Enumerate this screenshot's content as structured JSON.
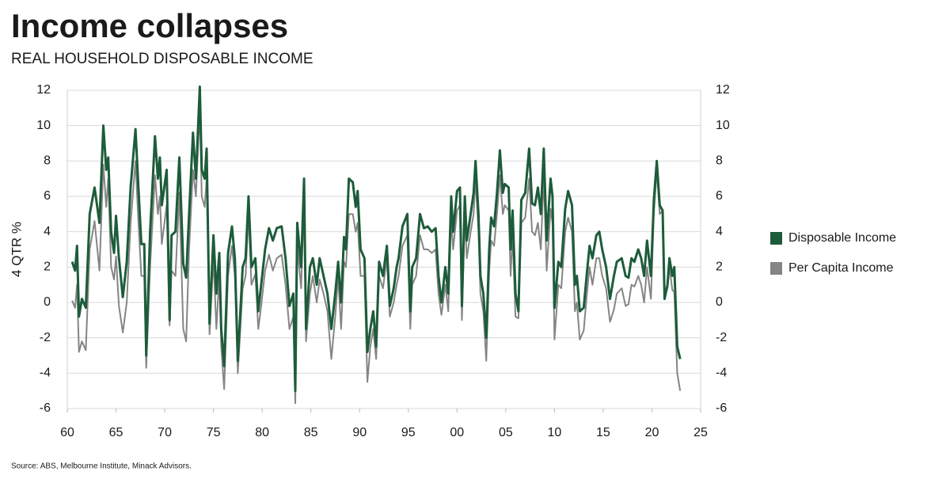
{
  "chart_data": {
    "type": "line",
    "title": "Income collapses",
    "subtitle": "REAL HOUSEHOLD DISPOSABLE INCOME",
    "y_label": "4 QTR %",
    "source": "Source: ABS, Melbourne Institute, Minack Advisors.",
    "legend": "right",
    "grid": true,
    "xlim": [
      1960,
      2025
    ],
    "xticks": [
      {
        "value": 1960,
        "label": "60"
      },
      {
        "value": 1965,
        "label": "65"
      },
      {
        "value": 1970,
        "label": "70"
      },
      {
        "value": 1975,
        "label": "75"
      },
      {
        "value": 1980,
        "label": "80"
      },
      {
        "value": 1985,
        "label": "85"
      },
      {
        "value": 1990,
        "label": "90"
      },
      {
        "value": 1995,
        "label": "95"
      },
      {
        "value": 2000,
        "label": "00"
      },
      {
        "value": 2005,
        "label": "05"
      },
      {
        "value": 2010,
        "label": "10"
      },
      {
        "value": 2015,
        "label": "15"
      },
      {
        "value": 2020,
        "label": "20"
      },
      {
        "value": 2025,
        "label": "25"
      }
    ],
    "ylim": [
      -6,
      12
    ],
    "yticks": [
      -6,
      -4,
      -2,
      0,
      2,
      4,
      6,
      8,
      10,
      12
    ],
    "y2lim": [
      -6,
      12
    ],
    "y2ticks": [
      -6,
      -4,
      -2,
      0,
      2,
      4,
      6,
      8,
      10,
      12
    ],
    "x": [
      1960.5,
      1960.8,
      1961.0,
      1961.2,
      1961.5,
      1961.9,
      1962.3,
      1962.8,
      1963.3,
      1963.7,
      1964.0,
      1964.2,
      1964.5,
      1964.8,
      1965.0,
      1965.3,
      1965.7,
      1966.1,
      1966.5,
      1967.0,
      1967.3,
      1967.6,
      1967.9,
      1968.1,
      1968.5,
      1969.0,
      1969.3,
      1969.5,
      1969.7,
      1970.2,
      1970.5,
      1970.7,
      1971.1,
      1971.5,
      1971.9,
      1972.2,
      1972.5,
      1972.9,
      1973.2,
      1973.6,
      1973.8,
      1974.1,
      1974.3,
      1974.6,
      1975.0,
      1975.3,
      1975.6,
      1975.8,
      1976.1,
      1976.5,
      1976.9,
      1977.2,
      1977.5,
      1978.0,
      1978.3,
      1978.6,
      1978.9,
      1979.3,
      1979.6,
      1979.9,
      1980.3,
      1980.7,
      1981.1,
      1981.5,
      1982.0,
      1982.4,
      1982.8,
      1983.2,
      1983.4,
      1983.6,
      1984.0,
      1984.3,
      1984.5,
      1984.9,
      1985.2,
      1985.6,
      1985.9,
      1986.3,
      1986.7,
      1987.1,
      1987.5,
      1987.8,
      1988.1,
      1988.4,
      1988.6,
      1988.9,
      1989.3,
      1989.6,
      1989.8,
      1990.1,
      1990.5,
      1990.8,
      1991.1,
      1991.4,
      1991.7,
      1992.0,
      1992.4,
      1992.8,
      1993.1,
      1993.5,
      1993.8,
      1994.0,
      1994.4,
      1994.9,
      1995.2,
      1995.4,
      1995.8,
      1996.2,
      1996.6,
      1997.0,
      1997.4,
      1997.8,
      1998.1,
      1998.4,
      1998.8,
      1999.1,
      1999.4,
      1999.6,
      2000.0,
      2000.3,
      2000.5,
      2000.8,
      2001.0,
      2001.4,
      2001.7,
      2001.9,
      2002.2,
      2002.4,
      2002.7,
      2003.0,
      2003.3,
      2003.5,
      2003.8,
      2004.1,
      2004.4,
      2004.7,
      2004.9,
      2005.3,
      2005.5,
      2005.7,
      2006.0,
      2006.3,
      2006.6,
      2007.0,
      2007.4,
      2007.7,
      2008.0,
      2008.3,
      2008.6,
      2008.9,
      2009.2,
      2009.6,
      2009.8,
      2010.0,
      2010.4,
      2010.7,
      2011.1,
      2011.4,
      2011.8,
      2012.1,
      2012.3,
      2012.6,
      2013.0,
      2013.3,
      2013.6,
      2013.9,
      2014.3,
      2014.6,
      2014.9,
      2015.3,
      2015.7,
      2016.1,
      2016.4,
      2016.9,
      2017.3,
      2017.6,
      2017.9,
      2018.2,
      2018.6,
      2018.9,
      2019.2,
      2019.5,
      2019.9,
      2020.2,
      2020.5,
      2020.8,
      2021.1,
      2021.3,
      2021.6,
      2021.8,
      2022.1,
      2022.3,
      2022.6,
      2022.9
    ],
    "series": [
      {
        "name": "Per Capita Income",
        "color": "#858585",
        "width": 2,
        "values": [
          0.1,
          -0.3,
          1.0,
          -2.8,
          -2.2,
          -2.7,
          3.0,
          4.6,
          1.8,
          7.8,
          5.4,
          7.0,
          2.0,
          1.3,
          2.6,
          -0.2,
          -1.7,
          0.0,
          4.5,
          8.0,
          4.5,
          1.5,
          1.5,
          -3.7,
          2.0,
          7.2,
          5.0,
          6.0,
          3.3,
          5.5,
          -1.3,
          1.8,
          1.5,
          6.2,
          -1.5,
          -2.2,
          3.0,
          7.5,
          6.0,
          11.0,
          6.0,
          5.4,
          7.0,
          -1.8,
          2.5,
          -1.5,
          1.5,
          -2.5,
          -4.9,
          1.5,
          3.2,
          1.5,
          -4.0,
          0.8,
          1.5,
          5.0,
          1.0,
          1.6,
          -1.5,
          -0.2,
          1.8,
          2.7,
          1.8,
          2.5,
          2.7,
          1.0,
          -1.5,
          -0.8,
          -5.7,
          3.2,
          0.8,
          6.0,
          -2.2,
          0.5,
          1.5,
          0.0,
          1.3,
          0.5,
          -0.5,
          -3.2,
          -0.8,
          1.5,
          -1.5,
          2.3,
          2.0,
          5.0,
          5.0,
          4.0,
          4.5,
          1.5,
          1.5,
          -4.5,
          -2.5,
          -1.5,
          -3.2,
          1.5,
          0.8,
          2.5,
          -0.8,
          0.0,
          1.0,
          1.5,
          3.2,
          3.8,
          -1.5,
          1.0,
          1.5,
          3.8,
          3.0,
          3.0,
          2.8,
          3.0,
          0.5,
          -0.7,
          1.0,
          -0.5,
          4.8,
          3.0,
          5.2,
          5.5,
          -1.0,
          5.0,
          2.5,
          4.0,
          5.0,
          7.0,
          4.0,
          0.5,
          -0.5,
          -3.3,
          1.8,
          3.5,
          3.2,
          5.0,
          7.2,
          5.0,
          5.5,
          5.2,
          1.5,
          3.8,
          -0.8,
          -0.9,
          4.5,
          4.8,
          7.0,
          4.0,
          3.8,
          4.5,
          3.0,
          7.2,
          1.8,
          5.3,
          4.5,
          -2.1,
          1.0,
          0.8,
          4.0,
          4.8,
          4.0,
          -0.5,
          0.0,
          -2.1,
          -1.6,
          0.3,
          2.0,
          1.0,
          2.5,
          2.5,
          1.5,
          0.8,
          -1.1,
          -0.4,
          0.5,
          0.8,
          -0.2,
          -0.1,
          1.0,
          0.9,
          1.5,
          1.0,
          0.0,
          2.0,
          0.2,
          5.0,
          7.5,
          5.0,
          5.2,
          0.3,
          0.8,
          2.0,
          0.7,
          0.6,
          -4.0,
          -5.0
        ]
      },
      {
        "name": "Disposable Income",
        "color": "#1d5c3a",
        "width": 3,
        "values": [
          2.3,
          1.8,
          3.2,
          -0.8,
          0.2,
          -0.3,
          5.0,
          6.5,
          4.5,
          10.0,
          7.5,
          8.2,
          4.0,
          2.8,
          4.9,
          2.5,
          0.3,
          2.3,
          6.5,
          9.8,
          6.5,
          3.3,
          3.3,
          -3.0,
          4.0,
          9.4,
          7.0,
          8.2,
          5.5,
          7.5,
          -1.0,
          3.8,
          4.0,
          8.2,
          2.2,
          1.4,
          5.0,
          9.6,
          7.0,
          12.2,
          7.5,
          7.0,
          8.7,
          -1.2,
          3.8,
          0.5,
          2.8,
          -1.5,
          -3.6,
          2.8,
          4.3,
          2.5,
          -3.3,
          2.0,
          2.5,
          6.0,
          2.0,
          2.5,
          -0.5,
          1.0,
          3.0,
          4.2,
          3.5,
          4.2,
          4.3,
          2.5,
          -0.2,
          0.5,
          -5.0,
          4.5,
          2.0,
          7.0,
          -1.5,
          2.0,
          2.5,
          1.0,
          2.5,
          1.5,
          0.5,
          -1.5,
          0.5,
          2.3,
          0.0,
          3.7,
          3.0,
          7.0,
          6.8,
          5.4,
          6.3,
          3.0,
          2.5,
          -2.8,
          -1.5,
          -0.5,
          -2.5,
          2.3,
          1.5,
          3.2,
          -0.2,
          0.8,
          2.0,
          2.5,
          4.3,
          5.0,
          -0.5,
          2.0,
          2.5,
          5.0,
          4.2,
          4.3,
          4.0,
          4.2,
          1.5,
          0.0,
          2.0,
          0.5,
          6.0,
          4.0,
          6.3,
          6.5,
          -0.2,
          6.0,
          3.5,
          5.0,
          6.2,
          8.0,
          5.0,
          1.5,
          0.5,
          -2.0,
          3.0,
          4.8,
          4.3,
          6.2,
          8.6,
          6.2,
          6.7,
          6.5,
          3.0,
          5.2,
          0.5,
          -0.5,
          5.8,
          6.2,
          8.7,
          5.6,
          5.5,
          6.5,
          5.0,
          8.7,
          3.5,
          7.0,
          6.0,
          -0.3,
          2.3,
          2.0,
          5.3,
          6.3,
          5.5,
          1.0,
          1.5,
          -0.5,
          -0.3,
          1.5,
          3.2,
          2.5,
          3.8,
          4.0,
          3.0,
          2.0,
          0.2,
          1.5,
          2.3,
          2.5,
          1.5,
          1.4,
          2.5,
          2.3,
          3.0,
          2.5,
          1.5,
          3.5,
          1.5,
          5.8,
          8.0,
          5.5,
          5.2,
          0.2,
          1.0,
          2.5,
          1.5,
          2.0,
          -2.5,
          -3.2
        ]
      }
    ]
  }
}
